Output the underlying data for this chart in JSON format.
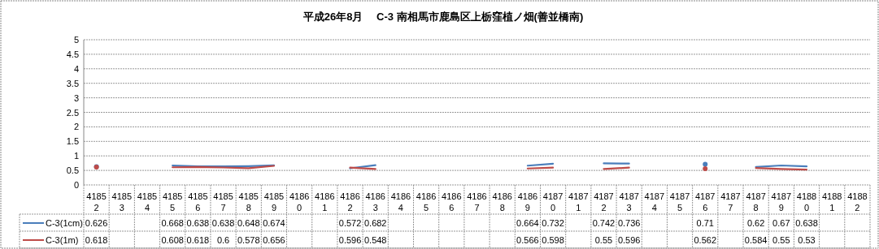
{
  "chart_data": {
    "type": "line",
    "title": "平成26年8月　 C-3 南相馬市鹿島区上栃窪植ノ畑(善並橋南)",
    "categories": [
      "41852",
      "41853",
      "41854",
      "41855",
      "41856",
      "41857",
      "41858",
      "41859",
      "41860",
      "41861",
      "41862",
      "41863",
      "41864",
      "41865",
      "41866",
      "41867",
      "41868",
      "41869",
      "41870",
      "41871",
      "41872",
      "41873",
      "41874",
      "41875",
      "41876",
      "41877",
      "41878",
      "41879",
      "41880",
      "41881",
      "41882"
    ],
    "series": [
      {
        "name": "C-3(1cm)",
        "color": "#4a7ebb",
        "values": [
          0.626,
          null,
          null,
          0.668,
          0.638,
          0.638,
          0.648,
          0.674,
          null,
          null,
          0.572,
          0.682,
          null,
          null,
          null,
          null,
          null,
          0.664,
          0.732,
          null,
          0.742,
          0.736,
          null,
          null,
          0.71,
          null,
          0.62,
          0.67,
          0.638,
          null,
          null
        ]
      },
      {
        "name": "C-3(1m)",
        "color": "#be4b48",
        "values": [
          0.618,
          null,
          null,
          0.608,
          0.618,
          0.6,
          0.578,
          0.656,
          null,
          null,
          0.596,
          0.548,
          null,
          null,
          null,
          null,
          null,
          0.566,
          0.598,
          null,
          0.55,
          0.596,
          null,
          null,
          0.562,
          null,
          0.584,
          0.55,
          0.53,
          null,
          null
        ]
      }
    ],
    "ylim": [
      0,
      5
    ],
    "yticks": [
      0,
      0.5,
      1,
      1.5,
      2,
      2.5,
      3,
      3.5,
      4,
      4.5,
      5
    ],
    "grid": "y",
    "legend": "bottom",
    "marker": "none",
    "line_style": "solid",
    "data_labels": true
  }
}
